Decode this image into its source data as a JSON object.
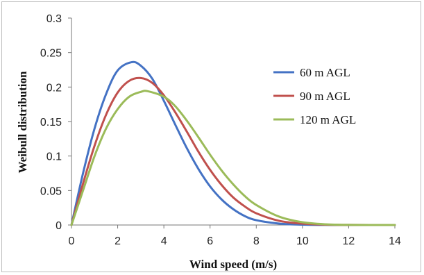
{
  "chart_data": {
    "type": "line",
    "title": "",
    "xlabel": "Wind speed (m/s)",
    "ylabel": "Weibull distribution",
    "xlim": [
      0,
      14
    ],
    "ylim": [
      0,
      0.3
    ],
    "x_ticks": [
      "0",
      "2",
      "4",
      "6",
      "8",
      "10",
      "12",
      "14"
    ],
    "y_ticks": [
      "0",
      "0.05",
      "0.1",
      "0.15",
      "0.2",
      "0.25",
      "0.3"
    ],
    "grid": false,
    "legend_position": "top-right",
    "series": [
      {
        "name": "60 m AGL",
        "color": "#4472C4",
        "x": [
          0,
          0.5,
          1,
          1.5,
          2,
          2.6,
          3,
          3.5,
          4,
          4.5,
          5,
          5.5,
          6,
          6.5,
          7,
          7.5,
          8,
          9,
          10,
          11,
          12,
          14
        ],
        "y": [
          0,
          0.075,
          0.14,
          0.19,
          0.224,
          0.236,
          0.231,
          0.212,
          0.18,
          0.145,
          0.111,
          0.081,
          0.056,
          0.037,
          0.023,
          0.013,
          0.007,
          0.002,
          0.0005,
          0.0001,
          0,
          0
        ]
      },
      {
        "name": "90 m AGL",
        "color": "#C0504D",
        "x": [
          0,
          0.5,
          1,
          1.5,
          2,
          2.5,
          3,
          3.5,
          4,
          4.5,
          5,
          5.5,
          6,
          6.5,
          7,
          7.5,
          8,
          9,
          10,
          11,
          12,
          14
        ],
        "y": [
          0,
          0.06,
          0.115,
          0.16,
          0.192,
          0.209,
          0.213,
          0.206,
          0.188,
          0.163,
          0.135,
          0.106,
          0.08,
          0.058,
          0.04,
          0.027,
          0.017,
          0.006,
          0.002,
          0.0005,
          0.0001,
          0
        ]
      },
      {
        "name": "120 m AGL",
        "color": "#9BBB59",
        "x": [
          0,
          0.5,
          1,
          1.5,
          2,
          2.5,
          3,
          3.3,
          4,
          4.5,
          5,
          5.5,
          6,
          6.5,
          7,
          7.5,
          8,
          9,
          10,
          11,
          12,
          14
        ],
        "y": [
          0,
          0.05,
          0.1,
          0.14,
          0.168,
          0.186,
          0.193,
          0.194,
          0.186,
          0.172,
          0.151,
          0.127,
          0.102,
          0.079,
          0.059,
          0.042,
          0.029,
          0.012,
          0.004,
          0.001,
          0.0002,
          0
        ]
      }
    ]
  }
}
